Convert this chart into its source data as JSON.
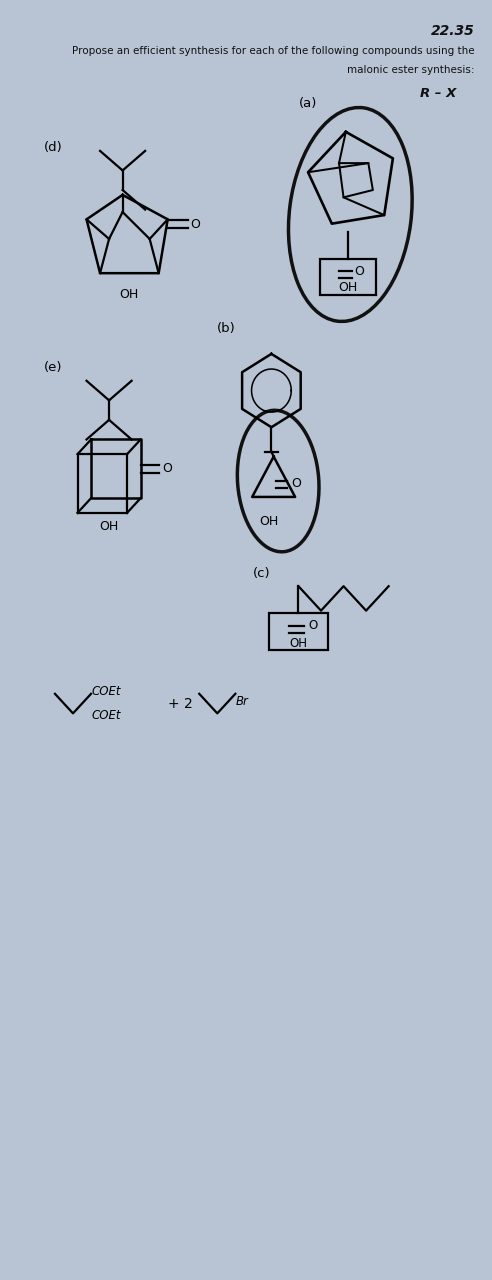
{
  "background_color": "#b8c4d4",
  "figsize": [
    4.92,
    12.8
  ],
  "dpi": 100,
  "title": "22.35",
  "desc_line1": "Propose an efficient synthesis for each of the following compounds using the",
  "desc_line2": "malonic ester synthesis:",
  "rx_label": "R – X",
  "label_a": "(a)",
  "label_b": "(b)",
  "label_c": "(c)",
  "label_d": "(d)",
  "label_e": "(e)"
}
